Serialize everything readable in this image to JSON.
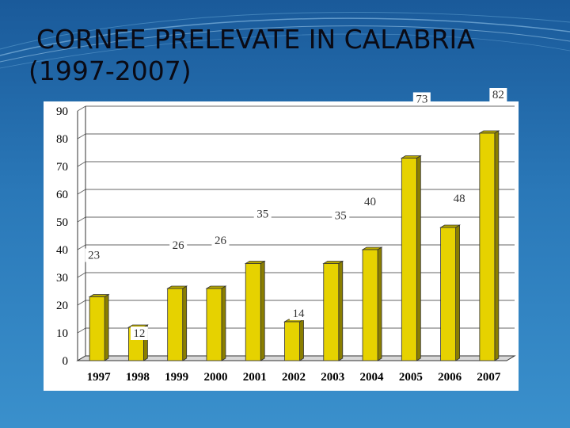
{
  "slide": {
    "title_line1": "CORNEE PRELEVATE IN CALABRIA",
    "title_line2": "(1997-2007)"
  },
  "colors": {
    "bar_face": "#e6d200",
    "bar_side": "#8a7e00",
    "bar_top": "#b8a800",
    "outline": "#333333"
  },
  "chart_data": {
    "type": "bar",
    "categories": [
      "1997",
      "1998",
      "1999",
      "2000",
      "2001",
      "2002",
      "2003",
      "2004",
      "2005",
      "2006",
      "2007"
    ],
    "values": [
      23,
      12,
      26,
      26,
      35,
      14,
      35,
      40,
      73,
      48,
      82
    ],
    "data_labels": [
      "23",
      "12",
      "26",
      "26",
      "35",
      "14",
      "35",
      "40",
      "73",
      "48",
      "82"
    ],
    "yticks": [
      0,
      10,
      20,
      30,
      40,
      50,
      60,
      70,
      80,
      90
    ],
    "ylim": [
      0,
      90
    ],
    "grid": true,
    "three_d": true
  }
}
